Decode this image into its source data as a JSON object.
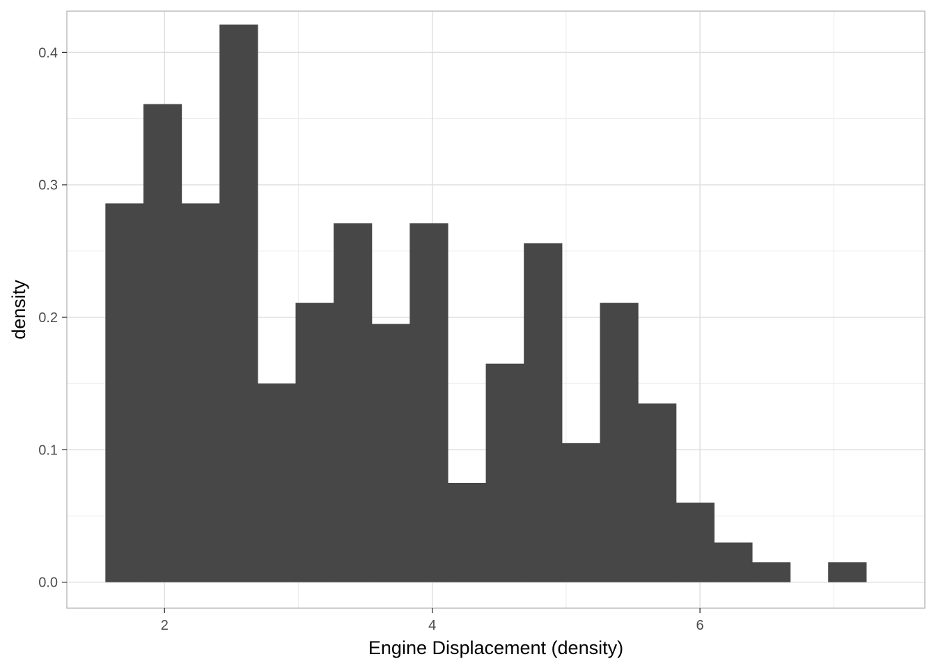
{
  "chart_data": {
    "type": "bar",
    "xlabel": "Engine Displacement (density)",
    "ylabel": "density",
    "xlim": [
      1.27,
      7.68
    ],
    "ylim": [
      -0.0196,
      0.4312
    ],
    "x_ticks": [
      2,
      4,
      6
    ],
    "x_minor_ticks": [
      3,
      5,
      7
    ],
    "y_ticks": [
      0.0,
      0.1,
      0.2,
      0.3,
      0.4
    ],
    "y_tick_labels": [
      "0.0",
      "0.1",
      "0.2",
      "0.3",
      "0.4"
    ],
    "y_minor_ticks": [
      0.05,
      0.15,
      0.25,
      0.35
    ],
    "grid": true,
    "bar_color": "#474747",
    "bin_width": 0.2842,
    "bin_start": 1.5579,
    "values": [
      0.286,
      0.361,
      0.286,
      0.421,
      0.15,
      0.211,
      0.271,
      0.195,
      0.271,
      0.075,
      0.165,
      0.256,
      0.105,
      0.211,
      0.135,
      0.06,
      0.03,
      0.015,
      0.0,
      0.015
    ]
  }
}
